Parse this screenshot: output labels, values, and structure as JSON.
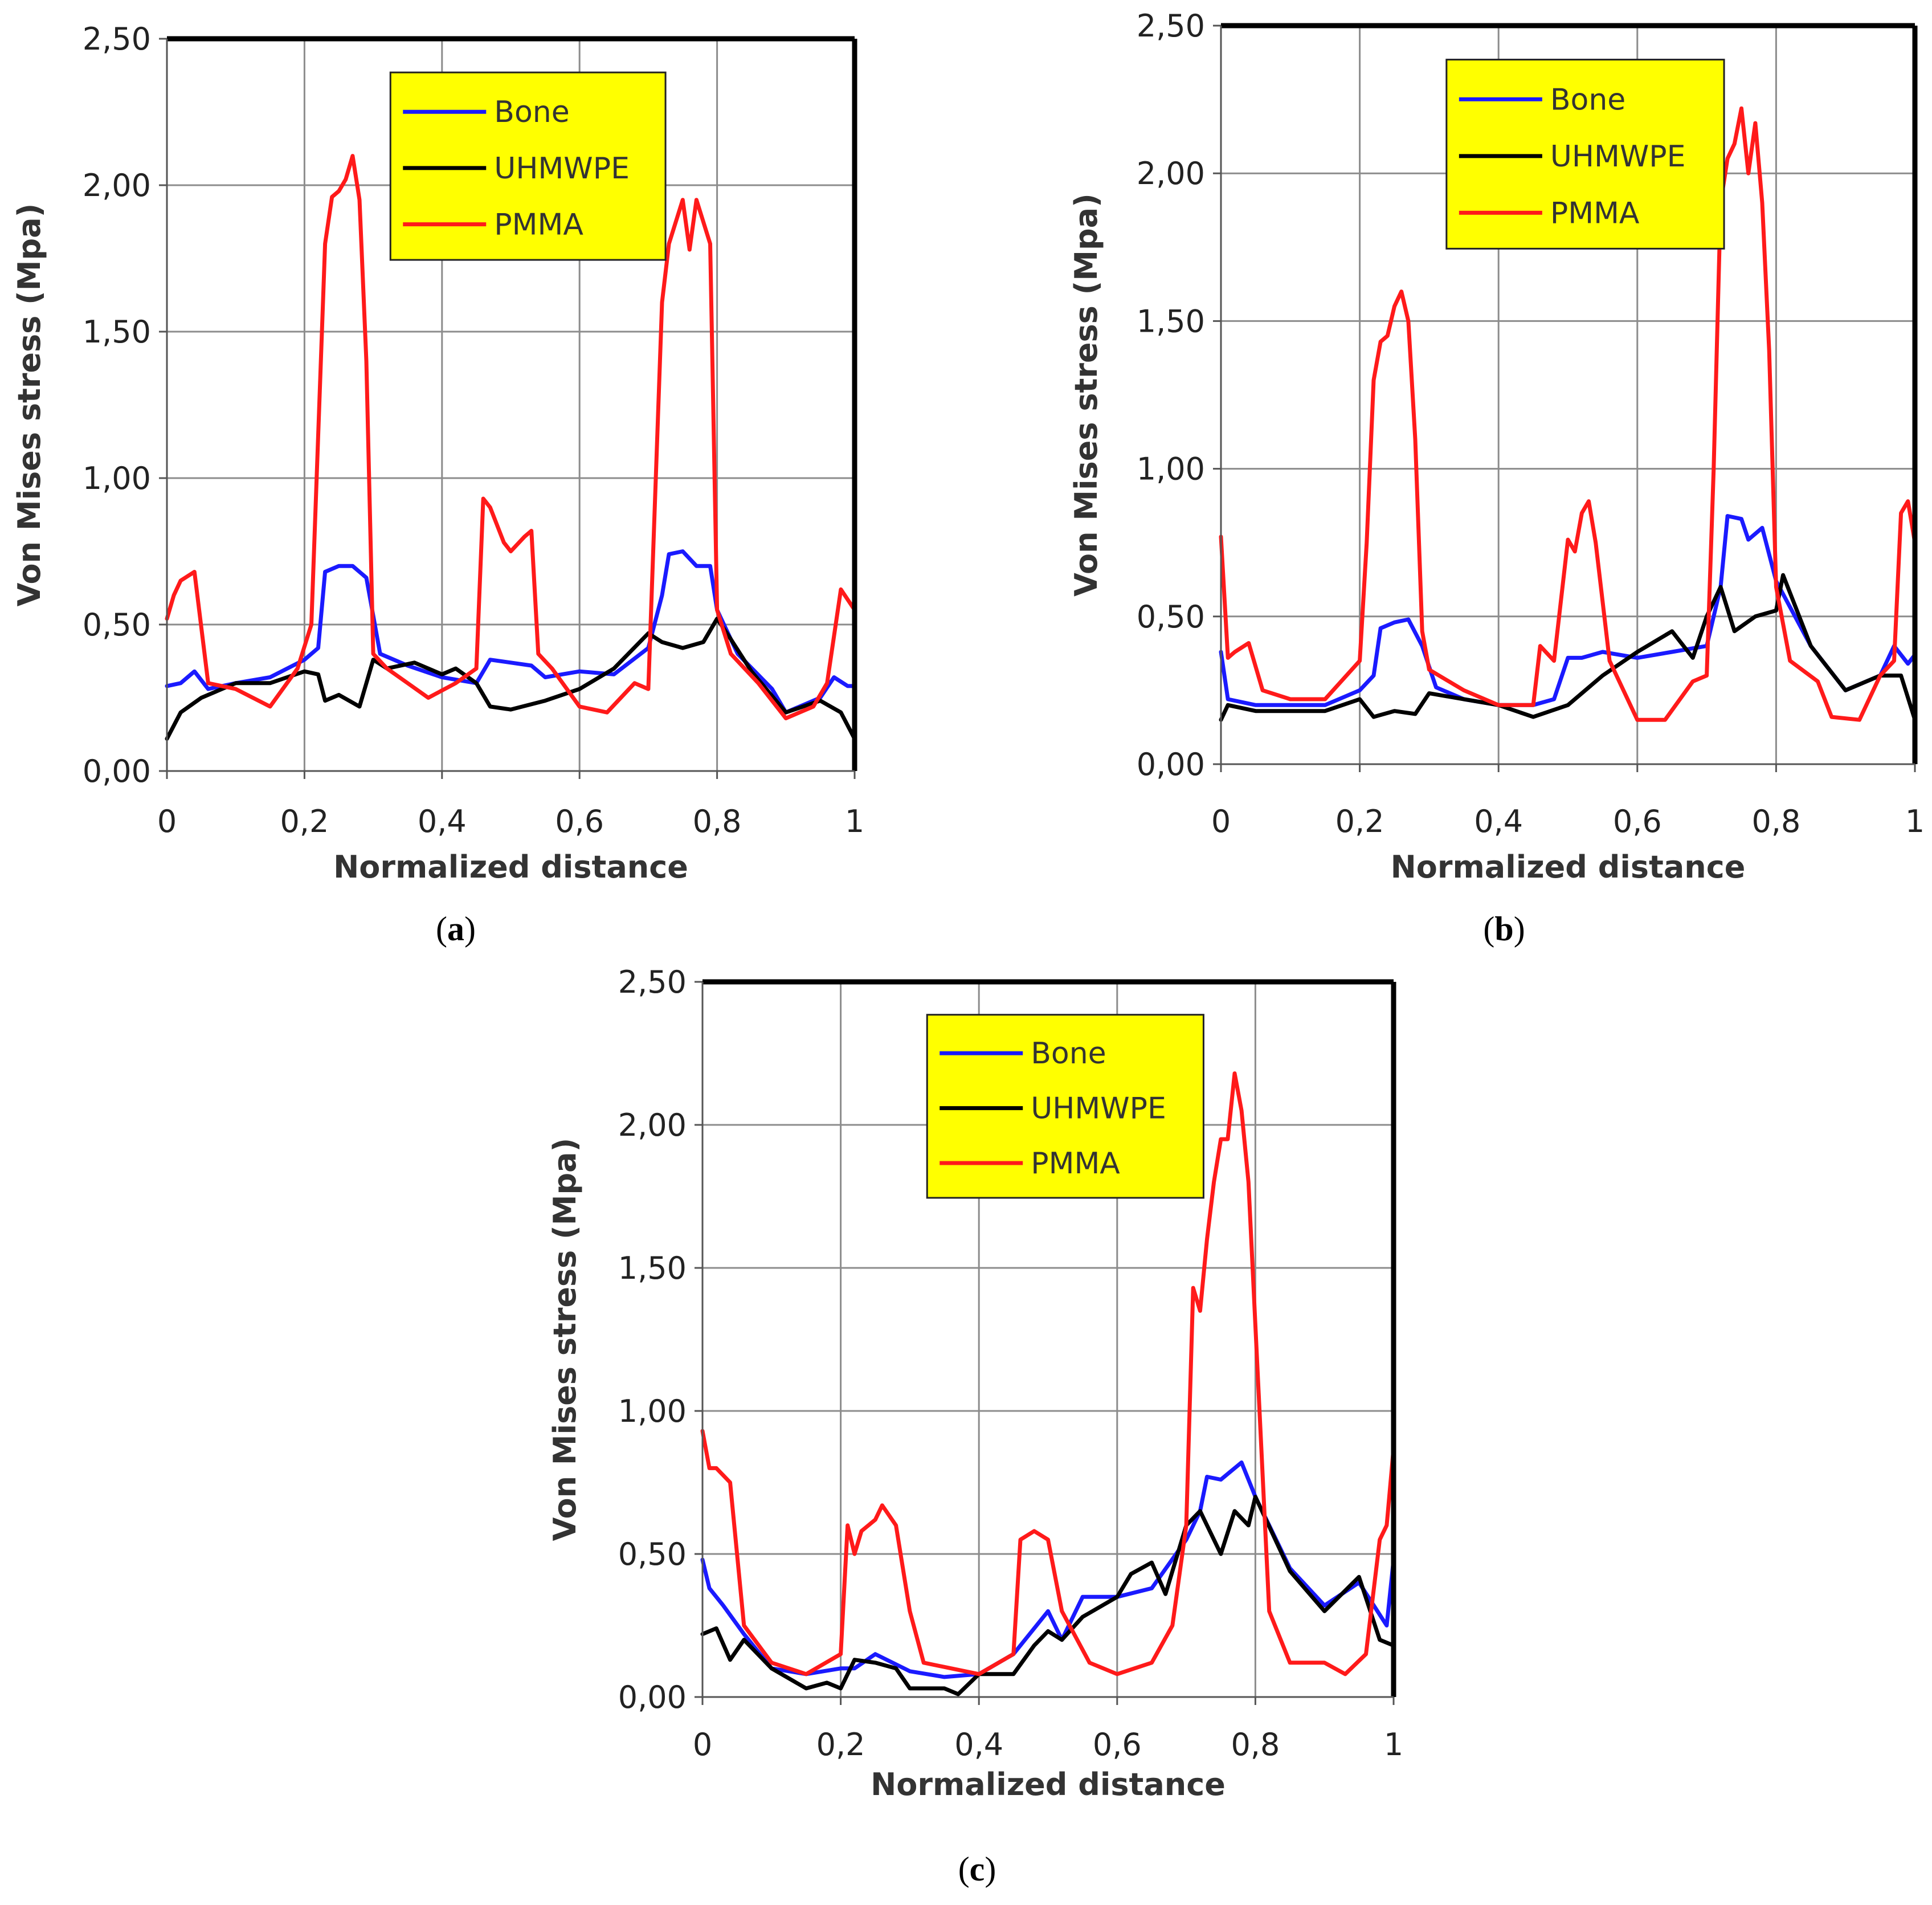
{
  "figure": {
    "colors": {
      "Bone": "#1a1aff",
      "UHMWPE": "#000000",
      "PMMA": "#ff1a1a",
      "legend_bg": "#ffff00",
      "grid": "#8c8c8c"
    }
  },
  "chart_data": [
    {
      "type": "line",
      "panel": "a",
      "caption": {
        "open": "(",
        "letter": "a",
        "close": ")"
      },
      "xlabel": "Normalized distance",
      "ylabel": "Von Mises stress (Mpa)",
      "xlim": [
        0,
        1
      ],
      "ylim": [
        0,
        2.5
      ],
      "xticks": [
        0,
        0.2,
        0.4,
        0.6,
        0.8,
        1
      ],
      "xtick_labels": [
        "0",
        "0,2",
        "0,4",
        "0,6",
        "0,8",
        "1"
      ],
      "yticks": [
        0,
        0.5,
        1,
        1.5,
        2,
        2.5
      ],
      "ytick_labels": [
        "0,00",
        "0,50",
        "1,00",
        "1,50",
        "2,00",
        "2,50"
      ],
      "legend": [
        "Bone",
        "UHMWPE",
        "PMMA"
      ],
      "series": [
        {
          "name": "Bone",
          "x": [
            0,
            0.02,
            0.04,
            0.06,
            0.1,
            0.15,
            0.2,
            0.22,
            0.23,
            0.25,
            0.27,
            0.29,
            0.31,
            0.35,
            0.4,
            0.45,
            0.47,
            0.5,
            0.53,
            0.55,
            0.6,
            0.65,
            0.7,
            0.72,
            0.73,
            0.75,
            0.77,
            0.79,
            0.8,
            0.83,
            0.88,
            0.9,
            0.95,
            0.97,
            0.99,
            1
          ],
          "y": [
            0.29,
            0.3,
            0.34,
            0.28,
            0.3,
            0.32,
            0.38,
            0.42,
            0.68,
            0.7,
            0.7,
            0.66,
            0.4,
            0.36,
            0.32,
            0.3,
            0.38,
            0.37,
            0.36,
            0.32,
            0.34,
            0.33,
            0.42,
            0.6,
            0.74,
            0.75,
            0.7,
            0.7,
            0.55,
            0.4,
            0.28,
            0.2,
            0.25,
            0.32,
            0.29,
            0.29
          ]
        },
        {
          "name": "UHMWPE",
          "x": [
            0,
            0.02,
            0.05,
            0.1,
            0.15,
            0.2,
            0.22,
            0.23,
            0.25,
            0.28,
            0.3,
            0.32,
            0.36,
            0.4,
            0.42,
            0.45,
            0.47,
            0.5,
            0.55,
            0.6,
            0.65,
            0.7,
            0.72,
            0.75,
            0.78,
            0.8,
            0.82,
            0.85,
            0.9,
            0.95,
            0.98,
            1
          ],
          "y": [
            0.11,
            0.2,
            0.25,
            0.3,
            0.3,
            0.34,
            0.33,
            0.24,
            0.26,
            0.22,
            0.38,
            0.35,
            0.37,
            0.33,
            0.35,
            0.3,
            0.22,
            0.21,
            0.24,
            0.28,
            0.35,
            0.47,
            0.44,
            0.42,
            0.44,
            0.52,
            0.45,
            0.34,
            0.2,
            0.24,
            0.2,
            0.11
          ]
        },
        {
          "name": "PMMA",
          "x": [
            0,
            0.01,
            0.02,
            0.04,
            0.06,
            0.1,
            0.15,
            0.19,
            0.21,
            0.23,
            0.24,
            0.25,
            0.26,
            0.27,
            0.28,
            0.29,
            0.3,
            0.32,
            0.35,
            0.38,
            0.42,
            0.45,
            0.46,
            0.47,
            0.49,
            0.5,
            0.52,
            0.53,
            0.54,
            0.56,
            0.6,
            0.64,
            0.68,
            0.7,
            0.72,
            0.73,
            0.75,
            0.76,
            0.77,
            0.79,
            0.8,
            0.82,
            0.86,
            0.9,
            0.94,
            0.96,
            0.98,
            1
          ],
          "y": [
            0.52,
            0.6,
            0.65,
            0.68,
            0.3,
            0.28,
            0.22,
            0.35,
            0.5,
            1.8,
            1.96,
            1.98,
            2.02,
            2.1,
            1.95,
            1.4,
            0.4,
            0.35,
            0.3,
            0.25,
            0.3,
            0.35,
            0.93,
            0.9,
            0.78,
            0.75,
            0.8,
            0.82,
            0.4,
            0.35,
            0.22,
            0.2,
            0.3,
            0.28,
            1.6,
            1.8,
            1.95,
            1.78,
            1.95,
            1.8,
            0.55,
            0.4,
            0.3,
            0.18,
            0.22,
            0.3,
            0.62,
            0.55
          ]
        }
      ]
    },
    {
      "type": "line",
      "panel": "b",
      "caption": {
        "open": "(",
        "letter": "b",
        "close": ")"
      },
      "xlabel": "Normalized distance",
      "ylabel": "Von Mises stress (Mpa)",
      "xlim": [
        0,
        1
      ],
      "ylim": [
        0,
        2.5
      ],
      "xticks": [
        0,
        0.2,
        0.4,
        0.6,
        0.8,
        1
      ],
      "xtick_labels": [
        "0",
        "0,2",
        "0,4",
        "0,6",
        "0,8",
        "1"
      ],
      "yticks": [
        0,
        0.5,
        1,
        1.5,
        2,
        2.5
      ],
      "ytick_labels": [
        "0,00",
        "0,50",
        "1,00",
        "1,50",
        "2,00",
        "2,50"
      ],
      "legend": [
        "Bone",
        "UHMWPE",
        "PMMA"
      ],
      "series": [
        {
          "name": "Bone",
          "x": [
            0,
            0.01,
            0.05,
            0.1,
            0.15,
            0.2,
            0.22,
            0.23,
            0.25,
            0.27,
            0.29,
            0.31,
            0.35,
            0.4,
            0.45,
            0.48,
            0.5,
            0.52,
            0.55,
            0.6,
            0.65,
            0.7,
            0.72,
            0.73,
            0.75,
            0.76,
            0.78,
            0.8,
            0.85,
            0.9,
            0.95,
            0.97,
            0.99,
            1
          ],
          "y": [
            0.38,
            0.22,
            0.2,
            0.2,
            0.2,
            0.25,
            0.3,
            0.46,
            0.48,
            0.49,
            0.4,
            0.26,
            0.22,
            0.2,
            0.2,
            0.22,
            0.36,
            0.36,
            0.38,
            0.36,
            0.38,
            0.4,
            0.6,
            0.84,
            0.83,
            0.76,
            0.8,
            0.62,
            0.4,
            0.25,
            0.3,
            0.4,
            0.34,
            0.37
          ]
        },
        {
          "name": "UHMWPE",
          "x": [
            0,
            0.01,
            0.05,
            0.1,
            0.15,
            0.2,
            0.22,
            0.25,
            0.28,
            0.3,
            0.35,
            0.4,
            0.45,
            0.5,
            0.55,
            0.6,
            0.65,
            0.68,
            0.7,
            0.72,
            0.74,
            0.77,
            0.8,
            0.81,
            0.85,
            0.9,
            0.95,
            0.98,
            1
          ],
          "y": [
            0.15,
            0.2,
            0.18,
            0.18,
            0.18,
            0.22,
            0.16,
            0.18,
            0.17,
            0.24,
            0.22,
            0.2,
            0.16,
            0.2,
            0.3,
            0.38,
            0.45,
            0.36,
            0.5,
            0.6,
            0.45,
            0.5,
            0.52,
            0.64,
            0.4,
            0.25,
            0.3,
            0.3,
            0.15
          ]
        },
        {
          "name": "PMMA",
          "x": [
            0,
            0.01,
            0.02,
            0.04,
            0.06,
            0.1,
            0.15,
            0.2,
            0.21,
            0.22,
            0.23,
            0.24,
            0.25,
            0.26,
            0.27,
            0.28,
            0.29,
            0.3,
            0.35,
            0.4,
            0.45,
            0.46,
            0.48,
            0.5,
            0.51,
            0.52,
            0.53,
            0.54,
            0.56,
            0.6,
            0.64,
            0.68,
            0.7,
            0.71,
            0.72,
            0.73,
            0.74,
            0.75,
            0.76,
            0.77,
            0.78,
            0.79,
            0.8,
            0.82,
            0.86,
            0.88,
            0.92,
            0.95,
            0.97,
            0.98,
            0.99,
            1
          ],
          "y": [
            0.77,
            0.36,
            0.38,
            0.41,
            0.25,
            0.22,
            0.22,
            0.35,
            0.75,
            1.3,
            1.43,
            1.45,
            1.55,
            1.6,
            1.5,
            1.1,
            0.45,
            0.32,
            0.25,
            0.2,
            0.2,
            0.4,
            0.35,
            0.76,
            0.72,
            0.85,
            0.89,
            0.75,
            0.35,
            0.15,
            0.15,
            0.28,
            0.3,
            1.0,
            1.9,
            2.05,
            2.1,
            2.22,
            2.0,
            2.17,
            1.9,
            1.4,
            0.6,
            0.35,
            0.28,
            0.16,
            0.15,
            0.3,
            0.35,
            0.85,
            0.89,
            0.75
          ]
        }
      ]
    },
    {
      "type": "line",
      "panel": "c",
      "caption": {
        "open": "(",
        "letter": "c",
        "close": ")"
      },
      "xlabel": "Normalized distance",
      "ylabel": "Von Mises stress (Mpa)",
      "xlim": [
        0,
        1
      ],
      "ylim": [
        0,
        2.5
      ],
      "xticks": [
        0,
        0.2,
        0.4,
        0.6,
        0.8,
        1
      ],
      "xtick_labels": [
        "0",
        "0,2",
        "0,4",
        "0,6",
        "0,8",
        "1"
      ],
      "yticks": [
        0,
        0.5,
        1,
        1.5,
        2,
        2.5
      ],
      "ytick_labels": [
        "0,00",
        "0,50",
        "1,00",
        "1,50",
        "2,00",
        "2,50"
      ],
      "legend": [
        "Bone",
        "UHMWPE",
        "PMMA"
      ],
      "series": [
        {
          "name": "Bone",
          "x": [
            0,
            0.01,
            0.03,
            0.06,
            0.1,
            0.15,
            0.2,
            0.22,
            0.25,
            0.3,
            0.35,
            0.4,
            0.45,
            0.5,
            0.52,
            0.55,
            0.6,
            0.65,
            0.7,
            0.72,
            0.73,
            0.75,
            0.77,
            0.78,
            0.8,
            0.85,
            0.9,
            0.95,
            0.99,
            1
          ],
          "y": [
            0.48,
            0.38,
            0.32,
            0.22,
            0.1,
            0.08,
            0.1,
            0.1,
            0.15,
            0.09,
            0.07,
            0.08,
            0.15,
            0.3,
            0.2,
            0.35,
            0.35,
            0.38,
            0.55,
            0.65,
            0.77,
            0.76,
            0.8,
            0.82,
            0.7,
            0.45,
            0.32,
            0.4,
            0.25,
            0.48
          ]
        },
        {
          "name": "UHMWPE",
          "x": [
            0,
            0.02,
            0.04,
            0.06,
            0.1,
            0.15,
            0.18,
            0.2,
            0.22,
            0.25,
            0.28,
            0.3,
            0.35,
            0.37,
            0.4,
            0.45,
            0.48,
            0.5,
            0.52,
            0.55,
            0.6,
            0.62,
            0.65,
            0.67,
            0.7,
            0.72,
            0.75,
            0.77,
            0.79,
            0.8,
            0.85,
            0.9,
            0.95,
            0.98,
            1
          ],
          "y": [
            0.22,
            0.24,
            0.13,
            0.2,
            0.1,
            0.03,
            0.05,
            0.03,
            0.13,
            0.12,
            0.1,
            0.03,
            0.03,
            0.01,
            0.08,
            0.08,
            0.18,
            0.23,
            0.2,
            0.28,
            0.35,
            0.43,
            0.47,
            0.36,
            0.6,
            0.65,
            0.5,
            0.65,
            0.6,
            0.7,
            0.44,
            0.3,
            0.42,
            0.2,
            0.18
          ]
        },
        {
          "name": "PMMA",
          "x": [
            0,
            0.01,
            0.02,
            0.04,
            0.06,
            0.1,
            0.15,
            0.2,
            0.21,
            0.22,
            0.23,
            0.25,
            0.26,
            0.28,
            0.3,
            0.32,
            0.36,
            0.4,
            0.45,
            0.46,
            0.48,
            0.5,
            0.52,
            0.56,
            0.6,
            0.65,
            0.68,
            0.7,
            0.71,
            0.72,
            0.73,
            0.74,
            0.75,
            0.76,
            0.77,
            0.78,
            0.79,
            0.8,
            0.82,
            0.85,
            0.9,
            0.93,
            0.96,
            0.98,
            0.99,
            1
          ],
          "y": [
            0.93,
            0.8,
            0.8,
            0.75,
            0.25,
            0.12,
            0.08,
            0.15,
            0.6,
            0.5,
            0.58,
            0.62,
            0.67,
            0.6,
            0.3,
            0.12,
            0.1,
            0.08,
            0.15,
            0.55,
            0.58,
            0.55,
            0.3,
            0.12,
            0.08,
            0.12,
            0.25,
            0.6,
            1.43,
            1.35,
            1.6,
            1.8,
            1.95,
            1.95,
            2.18,
            2.05,
            1.8,
            1.3,
            0.3,
            0.12,
            0.12,
            0.08,
            0.15,
            0.55,
            0.6,
            0.87
          ]
        }
      ]
    }
  ]
}
